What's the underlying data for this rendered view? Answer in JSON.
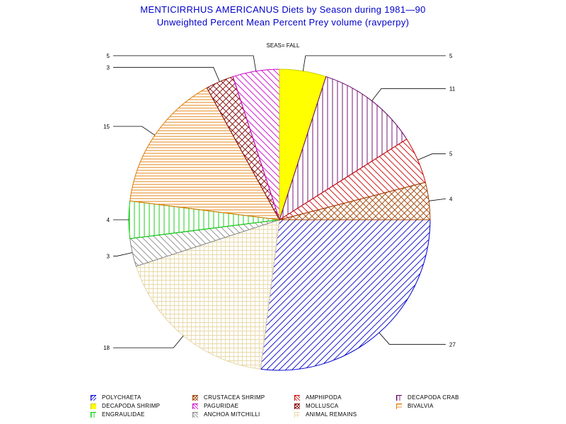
{
  "title": "MENTICIRRHUS AMERICANUS Diets by Season during 1981—90",
  "subtitle": "Unweighted Percent Mean Percent Prey  volume (ravperpy)",
  "by_label": "SEAS= FALL",
  "chart_data": {
    "type": "pie",
    "slices": [
      {
        "name": "POLYCHAETA",
        "value": 27,
        "label": "27",
        "color": "#0000cc",
        "pattern": "diag-right"
      },
      {
        "name": "ANIMAL REMAINS",
        "value": 18,
        "label": "18",
        "color": "#e8d8a8",
        "pattern": "grid"
      },
      {
        "name": "ANCHOA MITCHILLI",
        "value": 3,
        "label": "3",
        "color": "#888888",
        "pattern": "diag-left"
      },
      {
        "name": "ENGRAULIDAE",
        "value": 4,
        "label": "4",
        "color": "#00cc00",
        "pattern": "vertical"
      },
      {
        "name": "BIVALVIA",
        "value": 15,
        "label": "15",
        "color": "#e07800",
        "pattern": "horizontal"
      },
      {
        "name": "MOLLUSCA",
        "value": 3,
        "label": "3",
        "color": "#800000",
        "pattern": "cross"
      },
      {
        "name": "PAGURIDAE",
        "value": 5,
        "label": "5",
        "color": "#cc00cc",
        "pattern": "diag-left"
      },
      {
        "name": "DECAPODA SHRIMP",
        "value": 5,
        "label": "5",
        "color": "#ffff00",
        "pattern": "solid"
      },
      {
        "name": "DECAPODA CRAB",
        "value": 11,
        "label": "11",
        "color": "#660066",
        "pattern": "vertical"
      },
      {
        "name": "AMPHIPODA",
        "value": 5,
        "label": "5",
        "color": "#cc0000",
        "pattern": "diag-left"
      },
      {
        "name": "CRUSTACEA SHRIMP",
        "value": 4,
        "label": "4",
        "color": "#a04000",
        "pattern": "cross"
      }
    ],
    "start_angle_deg": 0,
    "direction": "clockwise"
  },
  "legend": [
    {
      "name": "POLYCHAETA",
      "color": "#0000cc",
      "pattern": "diag-right"
    },
    {
      "name": "CRUSTACEA SHRIMP",
      "color": "#a04000",
      "pattern": "cross"
    },
    {
      "name": "AMPHIPODA",
      "color": "#cc0000",
      "pattern": "diag-left"
    },
    {
      "name": "DECAPODA CRAB",
      "color": "#660066",
      "pattern": "vertical"
    },
    {
      "name": "DECAPODA SHRIMP",
      "color": "#ffff00",
      "pattern": "solid"
    },
    {
      "name": "PAGURIDAE",
      "color": "#cc00cc",
      "pattern": "diag-left"
    },
    {
      "name": "MOLLUSCA",
      "color": "#800000",
      "pattern": "cross"
    },
    {
      "name": "BIVALVIA",
      "color": "#e07800",
      "pattern": "horizontal"
    },
    {
      "name": "ENGRAULIDAE",
      "color": "#00cc00",
      "pattern": "vertical"
    },
    {
      "name": "ANCHOA MITCHILLI",
      "color": "#888888",
      "pattern": "diag-left"
    },
    {
      "name": "ANIMAL REMAINS",
      "color": "#e8d8a8",
      "pattern": "grid"
    }
  ]
}
